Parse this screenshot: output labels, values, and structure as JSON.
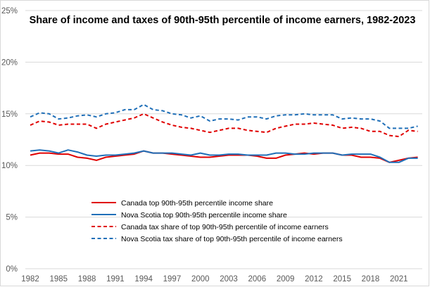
{
  "chart_data": {
    "type": "line",
    "title": "Share of income and taxes of 90th-95th percentile of income earners, 1982-2023",
    "xlabel": "",
    "ylabel": "",
    "x": [
      1982,
      1983,
      1984,
      1985,
      1986,
      1987,
      1988,
      1989,
      1990,
      1991,
      1992,
      1993,
      1994,
      1995,
      1996,
      1997,
      1998,
      1999,
      2000,
      2001,
      2002,
      2003,
      2004,
      2005,
      2006,
      2007,
      2008,
      2009,
      2010,
      2011,
      2012,
      2013,
      2014,
      2015,
      2016,
      2017,
      2018,
      2019,
      2020,
      2021,
      2022,
      2023
    ],
    "x_tick_labels": [
      "1982",
      "1985",
      "1988",
      "1991",
      "1994",
      "1997",
      "2000",
      "2003",
      "2006",
      "2009",
      "2012",
      "2015",
      "2018",
      "2021"
    ],
    "y_tick_labels": [
      "0%",
      "5%",
      "10%",
      "15%",
      "20%",
      "25%"
    ],
    "ylim": [
      0,
      25
    ],
    "grid": true,
    "legend_position": "bottom-center",
    "series": [
      {
        "name": "Canada top 90th-95th percentile income share",
        "color": "#e00000",
        "dash": false,
        "values": [
          11.0,
          11.2,
          11.2,
          11.1,
          11.1,
          10.8,
          10.7,
          10.5,
          10.8,
          10.9,
          11.0,
          11.1,
          11.4,
          11.2,
          11.2,
          11.1,
          11.0,
          10.9,
          10.8,
          10.8,
          10.9,
          11.0,
          11.0,
          11.0,
          10.9,
          10.7,
          10.7,
          11.0,
          11.1,
          11.2,
          11.1,
          11.2,
          11.2,
          11.0,
          11.0,
          10.8,
          10.8,
          10.7,
          10.3,
          10.5,
          10.7,
          10.8
        ]
      },
      {
        "name": "Nova Scotia top 90th-95th percentile income share",
        "color": "#1f6fb8",
        "dash": false,
        "values": [
          11.4,
          11.5,
          11.4,
          11.2,
          11.5,
          11.3,
          11.0,
          10.9,
          11.0,
          11.0,
          11.1,
          11.2,
          11.4,
          11.2,
          11.2,
          11.2,
          11.1,
          11.0,
          11.2,
          11.0,
          11.0,
          11.1,
          11.1,
          11.0,
          11.0,
          11.0,
          11.2,
          11.2,
          11.1,
          11.1,
          11.2,
          11.2,
          11.2,
          11.0,
          11.1,
          11.1,
          11.1,
          10.8,
          10.3,
          10.3,
          10.7,
          10.7
        ]
      },
      {
        "name": "Canada tax share of top 90th-95th percentile of income earners",
        "color": "#e00000",
        "dash": true,
        "values": [
          13.9,
          14.3,
          14.2,
          13.9,
          14.0,
          14.0,
          14.0,
          13.6,
          14.0,
          14.2,
          14.4,
          14.6,
          15.0,
          14.6,
          14.2,
          13.9,
          13.7,
          13.6,
          13.4,
          13.2,
          13.4,
          13.6,
          13.6,
          13.4,
          13.3,
          13.2,
          13.6,
          13.8,
          14.0,
          14.0,
          14.1,
          14.0,
          13.9,
          13.6,
          13.7,
          13.6,
          13.3,
          13.3,
          12.9,
          12.8,
          13.4,
          13.3
        ]
      },
      {
        "name": "Nova Scotia tax share of top 90th-95th percentile of income earners",
        "color": "#1f6fb8",
        "dash": true,
        "values": [
          14.7,
          15.1,
          15.0,
          14.5,
          14.6,
          14.8,
          14.9,
          14.7,
          15.0,
          15.1,
          15.4,
          15.4,
          15.9,
          15.4,
          15.3,
          15.0,
          14.9,
          14.6,
          14.8,
          14.3,
          14.5,
          14.5,
          14.4,
          14.7,
          14.7,
          14.5,
          14.8,
          14.9,
          14.9,
          15.0,
          14.9,
          14.9,
          14.9,
          14.5,
          14.6,
          14.5,
          14.5,
          14.3,
          13.6,
          13.6,
          13.6,
          13.8
        ]
      }
    ]
  }
}
